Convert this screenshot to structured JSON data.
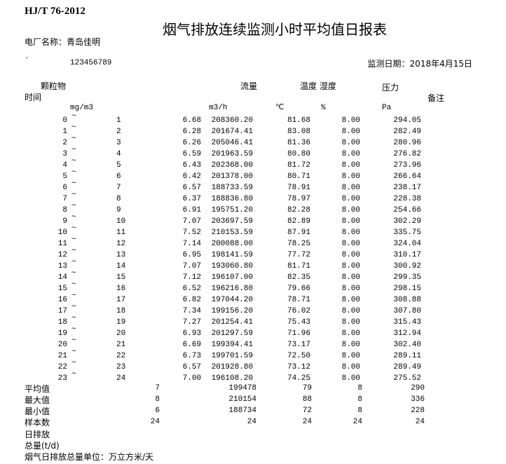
{
  "standard": "HJ/T 76-2012",
  "title": "烟气排放连续监测小时平均值日报表",
  "plant_label": "电厂名称：青岛佳明",
  "mark": "`",
  "code": "123456789",
  "date_label": "监测日期：2018年4月15日",
  "headers": {
    "particulate": "颗粒物",
    "flow": "流量",
    "temp_humidity": "温度 湿度",
    "pressure": "压力",
    "time": "时间",
    "remark": "备注"
  },
  "units": {
    "particulate": "mg/m3",
    "flow": "m3/h",
    "temp": "℃",
    "humidity": "%",
    "pressure": "Pa"
  },
  "tilde": "~",
  "rows": [
    {
      "start": "0",
      "end": "1",
      "particulate": "6.68",
      "flow": "208360.20",
      "temp": "81.68",
      "humidity": "8.00",
      "pressure": "294.05"
    },
    {
      "start": "1",
      "end": "2",
      "particulate": "6.28",
      "flow": "201674.41",
      "temp": "83.08",
      "humidity": "8.00",
      "pressure": "282.49"
    },
    {
      "start": "2",
      "end": "3",
      "particulate": "6.26",
      "flow": "205046.41",
      "temp": "81.36",
      "humidity": "8.00",
      "pressure": "280.96"
    },
    {
      "start": "3",
      "end": "4",
      "particulate": "6.59",
      "flow": "201963.59",
      "temp": "80.80",
      "humidity": "8.00",
      "pressure": "276.82"
    },
    {
      "start": "4",
      "end": "5",
      "particulate": "6.43",
      "flow": "202368.00",
      "temp": "81.72",
      "humidity": "8.00",
      "pressure": "273.96"
    },
    {
      "start": "5",
      "end": "6",
      "particulate": "6.42",
      "flow": "201378.00",
      "temp": "80.71",
      "humidity": "8.00",
      "pressure": "266.64"
    },
    {
      "start": "6",
      "end": "7",
      "particulate": "6.57",
      "flow": "188733.59",
      "temp": "78.91",
      "humidity": "8.00",
      "pressure": "238.17"
    },
    {
      "start": "7",
      "end": "8",
      "particulate": "6.37",
      "flow": "188836.80",
      "temp": "78.97",
      "humidity": "8.00",
      "pressure": "228.38"
    },
    {
      "start": "8",
      "end": "9",
      "particulate": "6.91",
      "flow": "195751.20",
      "temp": "82.28",
      "humidity": "8.00",
      "pressure": "254.66"
    },
    {
      "start": "9",
      "end": "10",
      "particulate": "7.07",
      "flow": "203697.59",
      "temp": "82.89",
      "humidity": "8.00",
      "pressure": "302.29"
    },
    {
      "start": "10",
      "end": "11",
      "particulate": "7.52",
      "flow": "210153.59",
      "temp": "87.91",
      "humidity": "8.00",
      "pressure": "335.75"
    },
    {
      "start": "11",
      "end": "12",
      "particulate": "7.14",
      "flow": "200088.00",
      "temp": "78.25",
      "humidity": "8.00",
      "pressure": "324.04"
    },
    {
      "start": "12",
      "end": "13",
      "particulate": "6.95",
      "flow": "198141.59",
      "temp": "77.72",
      "humidity": "8.00",
      "pressure": "310.17"
    },
    {
      "start": "13",
      "end": "14",
      "particulate": "7.07",
      "flow": "193060.80",
      "temp": "81.71",
      "humidity": "8.00",
      "pressure": "300.92"
    },
    {
      "start": "14",
      "end": "15",
      "particulate": "7.12",
      "flow": "196107.00",
      "temp": "82.35",
      "humidity": "8.00",
      "pressure": "299.35"
    },
    {
      "start": "15",
      "end": "16",
      "particulate": "6.52",
      "flow": "196216.80",
      "temp": "79.66",
      "humidity": "8.00",
      "pressure": "298.15"
    },
    {
      "start": "16",
      "end": "17",
      "particulate": "6.82",
      "flow": "197044.20",
      "temp": "78.71",
      "humidity": "8.00",
      "pressure": "308.88"
    },
    {
      "start": "17",
      "end": "18",
      "particulate": "7.34",
      "flow": "199156.20",
      "temp": "76.02",
      "humidity": "8.00",
      "pressure": "307.80"
    },
    {
      "start": "18",
      "end": "19",
      "particulate": "7.27",
      "flow": "201254.41",
      "temp": "75.43",
      "humidity": "8.00",
      "pressure": "315.43"
    },
    {
      "start": "19",
      "end": "20",
      "particulate": "6.93",
      "flow": "201297.59",
      "temp": "71.96",
      "humidity": "8.00",
      "pressure": "312.94"
    },
    {
      "start": "20",
      "end": "21",
      "particulate": "6.69",
      "flow": "199394.41",
      "temp": "73.17",
      "humidity": "8.00",
      "pressure": "302.40"
    },
    {
      "start": "21",
      "end": "22",
      "particulate": "6.73",
      "flow": "199701.59",
      "temp": "72.50",
      "humidity": "8.00",
      "pressure": "289.11"
    },
    {
      "start": "22",
      "end": "23",
      "particulate": "6.57",
      "flow": "201928.80",
      "temp": "73.12",
      "humidity": "8.00",
      "pressure": "289.49"
    },
    {
      "start": "23",
      "end": "24",
      "particulate": "7.00",
      "flow": "196108.20",
      "temp": "74.25",
      "humidity": "8.00",
      "pressure": "275.52"
    }
  ],
  "summary": [
    {
      "label": "平均值",
      "particulate": "7",
      "flow": "199478",
      "temp": "79",
      "humidity": "8",
      "pressure": "290"
    },
    {
      "label": "最大值",
      "particulate": "8",
      "flow": "210154",
      "temp": "88",
      "humidity": "8",
      "pressure": "336"
    },
    {
      "label": "最小值",
      "particulate": "6",
      "flow": "188734",
      "temp": "72",
      "humidity": "8",
      "pressure": "228"
    },
    {
      "label": "样本数",
      "particulate": "24",
      "flow": "24",
      "temp": "24",
      "humidity": "24",
      "pressure": "24"
    }
  ],
  "footer": {
    "daily_emission": "日排放",
    "total": "总量(t/d)",
    "unit_note": "烟气日排放总量单位：万立方米/天"
  }
}
